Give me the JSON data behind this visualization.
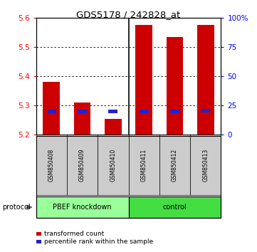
{
  "title": "GDS5178 / 242828_at",
  "samples": [
    "GSM850408",
    "GSM850409",
    "GSM850410",
    "GSM850411",
    "GSM850412",
    "GSM850413"
  ],
  "transformed_counts": [
    5.38,
    5.31,
    5.255,
    5.575,
    5.535,
    5.575
  ],
  "percentile_ranks": [
    20.0,
    20.0,
    20.0,
    20.0,
    20.0,
    20.5
  ],
  "ylim": [
    5.2,
    5.6
  ],
  "yticks": [
    5.2,
    5.3,
    5.4,
    5.5,
    5.6
  ],
  "right_yticks": [
    0,
    25,
    50,
    75,
    100
  ],
  "right_ylim": [
    0,
    100
  ],
  "bar_color": "#cc0000",
  "blue_color": "#2222cc",
  "groups": [
    {
      "label": "PBEF knockdown",
      "color": "#99ff99",
      "start": 0,
      "end": 3
    },
    {
      "label": "control",
      "color": "#44dd44",
      "start": 3,
      "end": 6
    }
  ],
  "protocol_label": "protocol",
  "legend_items": [
    {
      "color": "#cc0000",
      "label": "transformed count"
    },
    {
      "color": "#2222cc",
      "label": "percentile rank within the sample"
    }
  ],
  "bar_width": 0.55,
  "base_value": 5.2,
  "grid_lines": [
    5.3,
    5.4,
    5.5
  ]
}
